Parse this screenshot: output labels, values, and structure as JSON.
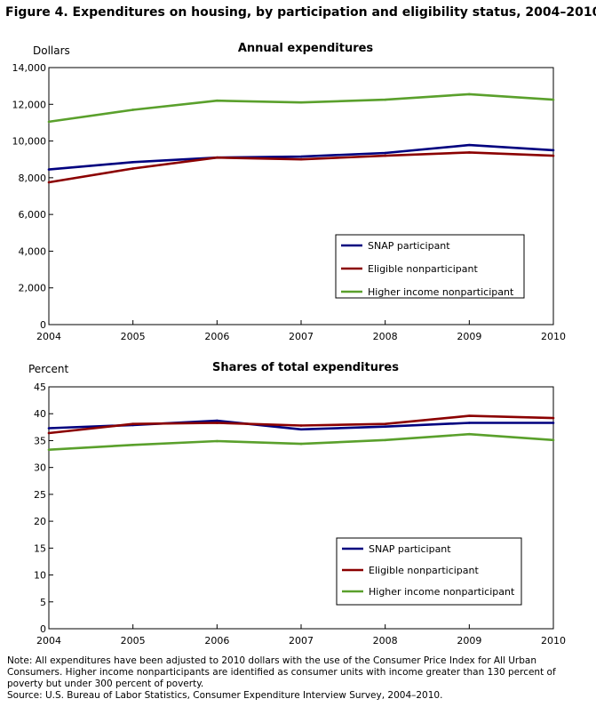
{
  "figure_title": "Figure 4. Expenditures on housing, by participation and eligibility status, 2004–2010",
  "note": "Note:  All expenditures have been adjusted to 2010 dollars with the use of the Consumer Price Index for All Urban Consumers. Higher income nonparticipants  are identified as consumer units with income greater than 130 percent of poverty but under 300 percent of poverty.",
  "source": "Source:  U.S. Bureau of Labor Statistics, Consumer Expenditure  Interview Survey, 2004–2010.",
  "chart_data": [
    {
      "type": "line",
      "title": "Annual expenditures",
      "ylabel": "Dollars",
      "xlabel": "",
      "x": [
        "2004",
        "2005",
        "2006",
        "2007",
        "2008",
        "2009",
        "2010"
      ],
      "ylim": [
        0,
        14000
      ],
      "yticks": [
        0,
        2000,
        4000,
        6000,
        8000,
        10000,
        12000,
        14000
      ],
      "ytick_labels": [
        "0",
        "2,000",
        "4,000",
        "6,000",
        "8,000",
        "10,000",
        "12,000",
        "14,000"
      ],
      "grid": false,
      "legend_position": "lower-right",
      "series": [
        {
          "name": "SNAP participant",
          "color": "#00007f",
          "values": [
            8450,
            8850,
            9100,
            9150,
            9350,
            9780,
            9500
          ]
        },
        {
          "name": "Eligible nonparticipant",
          "color": "#8b0000",
          "values": [
            7750,
            8500,
            9100,
            9000,
            9200,
            9380,
            9200
          ]
        },
        {
          "name": "Higher income nonparticipant",
          "color": "#5aa02c",
          "values": [
            11050,
            11700,
            12200,
            12100,
            12250,
            12550,
            12250
          ]
        }
      ]
    },
    {
      "type": "line",
      "title": "Shares of total expenditures",
      "ylabel": "Percent",
      "xlabel": "",
      "x": [
        "2004",
        "2005",
        "2006",
        "2007",
        "2008",
        "2009",
        "2010"
      ],
      "ylim": [
        0,
        45
      ],
      "yticks": [
        0,
        5,
        10,
        15,
        20,
        25,
        30,
        35,
        40,
        45
      ],
      "ytick_labels": [
        "0",
        "5",
        "10",
        "15",
        "20",
        "25",
        "30",
        "35",
        "40",
        "45"
      ],
      "grid": false,
      "legend_position": "lower-right",
      "series": [
        {
          "name": "SNAP participant",
          "color": "#00007f",
          "values": [
            37.3,
            37.9,
            38.7,
            37.1,
            37.6,
            38.3,
            38.3
          ]
        },
        {
          "name": "Eligible nonparticipant",
          "color": "#8b0000",
          "values": [
            36.4,
            38.1,
            38.3,
            37.8,
            38.1,
            39.6,
            39.2
          ]
        },
        {
          "name": "Higher income nonparticipant",
          "color": "#5aa02c",
          "values": [
            33.3,
            34.2,
            34.9,
            34.4,
            35.1,
            36.2,
            35.1
          ]
        }
      ]
    }
  ]
}
